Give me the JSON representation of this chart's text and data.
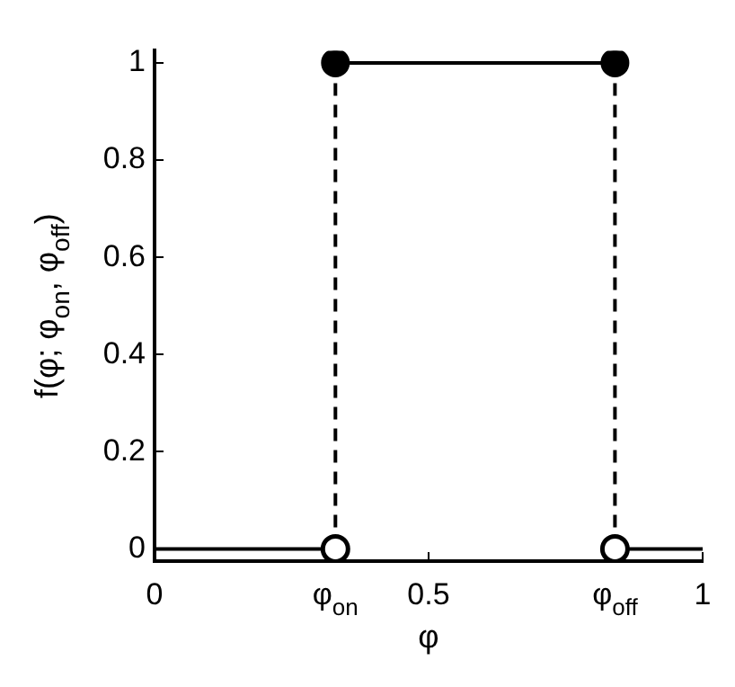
{
  "chart_data": {
    "type": "line",
    "xlabel": "φ",
    "ylabel": "f(φ; φ$_{on}$, φ$_{off}$)",
    "xlim": [
      0,
      1
    ],
    "ylim": [
      -0.025,
      1.025
    ],
    "xticks": [
      0,
      {
        "value": 0.33,
        "label": "φ$_{on}$"
      },
      0.5,
      {
        "value": 0.84,
        "label": "φ$_{off}$"
      },
      1
    ],
    "yticks": [
      0,
      0.2,
      0.4,
      0.6,
      0.8,
      1
    ],
    "grid": false,
    "legend": false,
    "series": [
      {
        "color": "#000000",
        "x": [
          0,
          0.33
        ],
        "values": [
          0,
          0
        ],
        "marker": "none",
        "line_style": "solid"
      },
      {
        "color": "#000000",
        "x": [
          0.33,
          0.84
        ],
        "values": [
          1,
          1
        ],
        "marker": "circle",
        "line_style": "solid"
      },
      {
        "color": "#000000",
        "x": [
          0.84,
          1
        ],
        "values": [
          0,
          0
        ],
        "marker": "none",
        "line_style": "solid"
      },
      {
        "color": "#000000",
        "x": [
          0.33,
          0.33
        ],
        "values": [
          0,
          1
        ],
        "marker": "none",
        "line_style": "dashed"
      },
      {
        "color": "#000000",
        "x": [
          0.84,
          0.84
        ],
        "values": [
          0,
          1
        ],
        "marker": "none",
        "line_style": "dashed"
      },
      {
        "type": "scatter",
        "color": "#000000",
        "x": [
          0.33,
          0.84
        ],
        "values": [
          0,
          0
        ],
        "marker": "circle"
      }
    ]
  }
}
